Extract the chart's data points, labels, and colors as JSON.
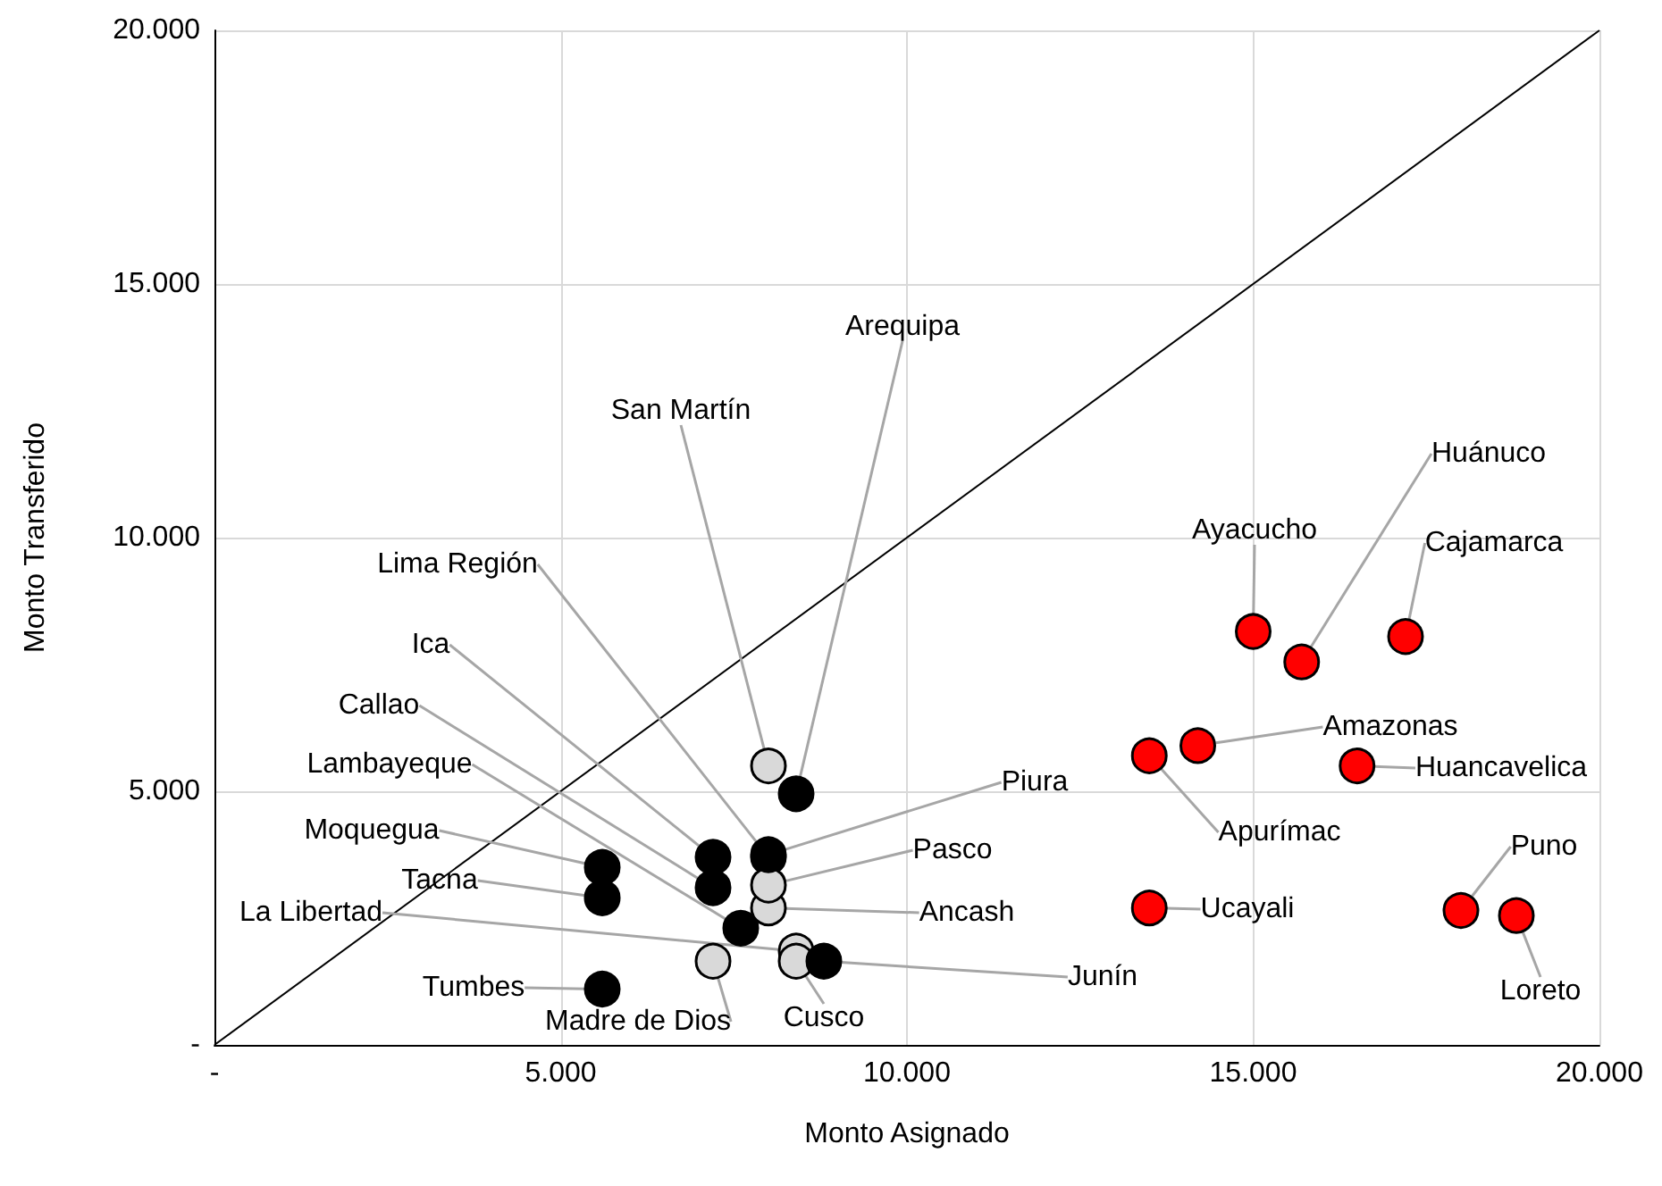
{
  "chart_data": {
    "type": "scatter",
    "xlabel": "Monto Asignado",
    "ylabel": "Monto Transferido",
    "xlim": [
      0,
      20000
    ],
    "ylim": [
      0,
      20000
    ],
    "xticks": [
      {
        "value": 0,
        "label": "-"
      },
      {
        "value": 5000,
        "label": "5.000"
      },
      {
        "value": 10000,
        "label": "10.000"
      },
      {
        "value": 15000,
        "label": "15.000"
      },
      {
        "value": 20000,
        "label": "20.000"
      }
    ],
    "yticks": [
      {
        "value": 0,
        "label": "-"
      },
      {
        "value": 5000,
        "label": "5.000"
      },
      {
        "value": 10000,
        "label": "10.000"
      },
      {
        "value": 15000,
        "label": "15.000"
      },
      {
        "value": 20000,
        "label": "20.000"
      }
    ],
    "grid": true,
    "marker": "circle",
    "series": [
      {
        "type": "line",
        "marker": "none",
        "color": "#000000",
        "x": [
          0,
          20000
        ],
        "values": [
          0,
          20000
        ]
      },
      {
        "x": [
          8400,
          8000,
          8000,
          7200,
          7200,
          7600,
          5600,
          5600,
          8400,
          5600,
          7200,
          8400,
          8800,
          8000,
          8000,
          8000,
          15000,
          15700,
          17200,
          14200,
          16500,
          13500,
          13500,
          18000,
          18800
        ],
        "values": [
          4950,
          5500,
          3700,
          3700,
          3100,
          2300,
          3500,
          2900,
          1850,
          1100,
          1650,
          1650,
          1650,
          2700,
          3150,
          3750,
          8150,
          7550,
          8050,
          5900,
          5500,
          5700,
          2700,
          2650,
          2550
        ],
        "colors": [
          "#000000",
          "#d9d9d9",
          "#000000",
          "#000000",
          "#000000",
          "#000000",
          "#000000",
          "#000000",
          "#d9d9d9",
          "#000000",
          "#d9d9d9",
          "#d9d9d9",
          "#000000",
          "#d9d9d9",
          "#d9d9d9",
          "#000000",
          "#ff0000",
          "#ff0000",
          "#ff0000",
          "#ff0000",
          "#ff0000",
          "#ff0000",
          "#ff0000",
          "#ff0000",
          "#ff0000"
        ],
        "value_labels": [
          "Arequipa",
          "San Martín",
          "Lima Región",
          "Ica",
          "Callao",
          "Lambayeque",
          "Moquegua",
          "Tacna",
          "La Libertad",
          "Tumbes",
          "Madre de Dios",
          "Cusco",
          "Junín",
          "Ancash",
          "Pasco",
          "Piura",
          "Ayacucho",
          "Huánuco",
          "Cajamarca",
          "Amazonas",
          "Huancavelica",
          "Apurímac",
          "Ucayali",
          "Puno",
          "Loreto"
        ]
      }
    ]
  }
}
